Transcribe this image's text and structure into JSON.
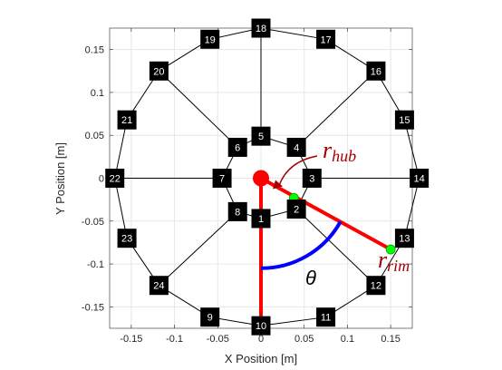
{
  "chart_data": {
    "type": "scatter",
    "title": "",
    "xlabel": "X Position [m]",
    "ylabel": "Y Position [m]",
    "xlim": [
      -0.175,
      0.175
    ],
    "ylim": [
      -0.175,
      0.175
    ],
    "xticks": [
      -0.15,
      -0.1,
      -0.05,
      0,
      0.05,
      0.1,
      0.15
    ],
    "xtick_labels": [
      "-0.15",
      "-0.1",
      "-0.05",
      "0",
      "0.05",
      "0.1",
      "0.15"
    ],
    "yticks": [
      -0.15,
      -0.1,
      -0.05,
      0,
      0.05,
      0.1,
      0.15
    ],
    "ytick_labels": [
      "-0.15",
      "-0.1",
      "-0.05",
      "0",
      "0.05",
      "0.1",
      "0.15"
    ],
    "grid": true,
    "nodes": [
      {
        "id": "1",
        "x": 0.0,
        "y": -0.047
      },
      {
        "id": "2",
        "x": 0.041,
        "y": -0.036
      },
      {
        "id": "3",
        "x": 0.059,
        "y": 0.0
      },
      {
        "id": "4",
        "x": 0.041,
        "y": 0.036
      },
      {
        "id": "5",
        "x": 0.0,
        "y": 0.049
      },
      {
        "id": "6",
        "x": -0.027,
        "y": 0.036
      },
      {
        "id": "7",
        "x": -0.045,
        "y": 0.0
      },
      {
        "id": "8",
        "x": -0.027,
        "y": -0.039
      },
      {
        "id": "9",
        "x": -0.059,
        "y": -0.162
      },
      {
        "id": "10",
        "x": 0.0,
        "y": -0.172
      },
      {
        "id": "11",
        "x": 0.075,
        "y": -0.162
      },
      {
        "id": "12",
        "x": 0.133,
        "y": -0.125
      },
      {
        "id": "13",
        "x": 0.166,
        "y": -0.07
      },
      {
        "id": "14",
        "x": 0.183,
        "y": 0.0
      },
      {
        "id": "15",
        "x": 0.166,
        "y": 0.068
      },
      {
        "id": "16",
        "x": 0.133,
        "y": 0.125
      },
      {
        "id": "17",
        "x": 0.075,
        "y": 0.162
      },
      {
        "id": "18",
        "x": 0.0,
        "y": 0.175
      },
      {
        "id": "19",
        "x": -0.059,
        "y": 0.162
      },
      {
        "id": "20",
        "x": -0.118,
        "y": 0.125
      },
      {
        "id": "21",
        "x": -0.155,
        "y": 0.068
      },
      {
        "id": "22",
        "x": -0.169,
        "y": 0.0
      },
      {
        "id": "23",
        "x": -0.155,
        "y": -0.07
      },
      {
        "id": "24",
        "x": -0.118,
        "y": -0.125
      }
    ],
    "rim_order": [
      "10",
      "11",
      "12",
      "13",
      "14",
      "15",
      "16",
      "17",
      "18",
      "19",
      "20",
      "21",
      "22",
      "23",
      "24",
      "9",
      "10"
    ],
    "hub_ring": [
      "3",
      "4",
      "5",
      "6",
      "7",
      "8",
      "1",
      "2",
      "3"
    ],
    "spokes": [
      [
        "3",
        "14"
      ],
      [
        "4",
        "16"
      ],
      [
        "5",
        "18"
      ],
      [
        "6",
        "20"
      ],
      [
        "7",
        "22"
      ],
      [
        "8",
        "24"
      ],
      [
        "1",
        "10"
      ],
      [
        "2",
        "12"
      ]
    ],
    "hub_center": {
      "x": 0.0,
      "y": 0.0
    },
    "hub_point": {
      "x": 0.038,
      "y": -0.023
    },
    "rim_point": {
      "x": 0.15,
      "y": -0.083
    },
    "theta_arc": {
      "radius": 0.105,
      "start_deg": -90,
      "end_deg": -29
    },
    "annotations": {
      "r_hub": {
        "main": "r",
        "sub": "hub"
      },
      "r_rim": {
        "main": "r",
        "sub": "rim"
      },
      "theta": "θ"
    },
    "colors": {
      "frame": "#000000",
      "node_box": "#000000",
      "node_text": "#ffffff",
      "radius_line": "#ff0000",
      "theta_arc": "#0000ff",
      "contact_point": "#00ff00",
      "annotation": "#a50000",
      "grid": "#e6e6e6"
    }
  }
}
